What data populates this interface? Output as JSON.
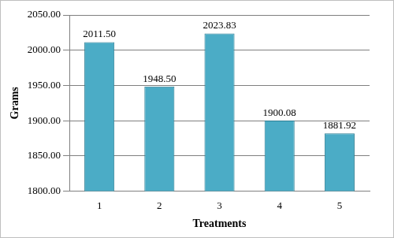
{
  "chart_data": {
    "type": "bar",
    "x_label": "Treatments",
    "y_label": "Grams",
    "categories": [
      "1",
      "2",
      "3",
      "4",
      "5"
    ],
    "values": [
      2011.5,
      1948.5,
      2023.83,
      1900.08,
      1881.92
    ],
    "value_labels": [
      "2011.50",
      "1948.50",
      "2023.83",
      "1900.08",
      "1881.92"
    ],
    "color": "#4bacc6",
    "ylim": [
      1800,
      2050
    ],
    "yticks": [
      {
        "value": 1800,
        "label": "1800.00"
      },
      {
        "value": 1850,
        "label": "1850.00"
      },
      {
        "value": 1900,
        "label": "1900.00"
      },
      {
        "value": 1950,
        "label": "1950.00"
      },
      {
        "value": 2000,
        "label": "2000.00"
      },
      {
        "value": 2050,
        "label": "2050.00"
      }
    ],
    "grid": true,
    "data_labels": true
  }
}
